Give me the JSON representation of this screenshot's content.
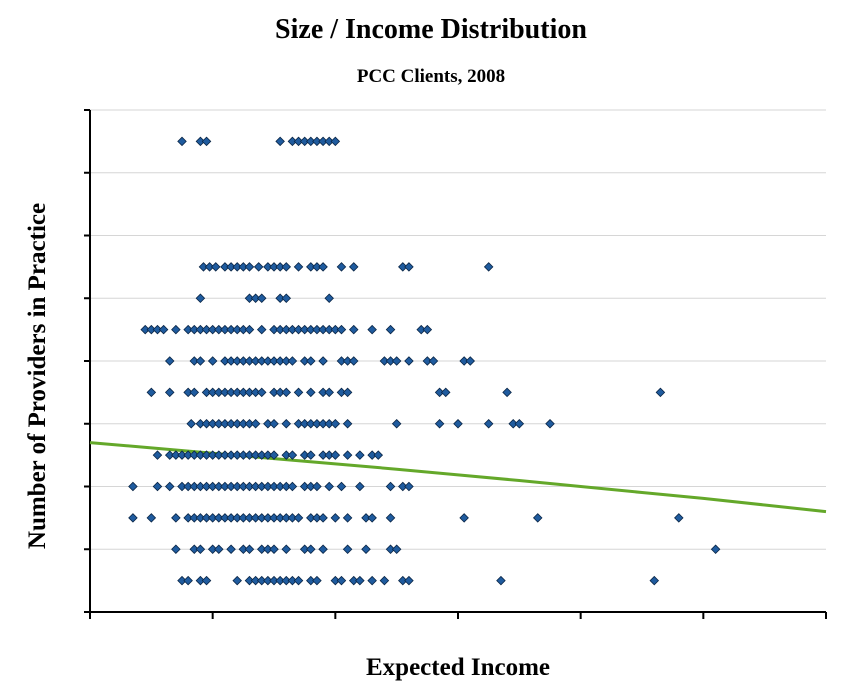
{
  "chart_data": {
    "type": "scatter",
    "title": "Size / Income Distribution",
    "subtitle": "PCC Clients, 2008",
    "xlabel": "Expected Income",
    "ylabel": "Number of Providers in Practice",
    "x_range": [
      0,
      12
    ],
    "y_range": [
      0,
      16
    ],
    "x_tick_count": 6,
    "y_tick_count": 8,
    "grid": "horizontal",
    "legend": "none",
    "colors": {
      "marker_fill": "#1f5b9e",
      "marker_stroke": "#0a2545",
      "trend_line": "#64a82a",
      "grid": "#d6d6d6",
      "axis": "#000000"
    },
    "series": [
      {
        "type": "scatter",
        "points": [
          [
            1.5,
            15
          ],
          [
            1.8,
            15
          ],
          [
            1.9,
            15
          ],
          [
            3.1,
            15
          ],
          [
            3.3,
            15
          ],
          [
            3.4,
            15
          ],
          [
            3.5,
            15
          ],
          [
            3.6,
            15
          ],
          [
            3.7,
            15
          ],
          [
            3.8,
            15
          ],
          [
            3.9,
            15
          ],
          [
            4.0,
            15
          ],
          [
            1.85,
            11
          ],
          [
            1.95,
            11
          ],
          [
            2.05,
            11
          ],
          [
            2.2,
            11
          ],
          [
            2.3,
            11
          ],
          [
            2.4,
            11
          ],
          [
            2.5,
            11
          ],
          [
            2.6,
            11
          ],
          [
            2.75,
            11
          ],
          [
            2.9,
            11
          ],
          [
            3.0,
            11
          ],
          [
            3.1,
            11
          ],
          [
            3.2,
            11
          ],
          [
            3.4,
            11
          ],
          [
            3.6,
            11
          ],
          [
            3.7,
            11
          ],
          [
            3.8,
            11
          ],
          [
            4.1,
            11
          ],
          [
            4.3,
            11
          ],
          [
            5.1,
            11
          ],
          [
            5.2,
            11
          ],
          [
            6.5,
            11
          ],
          [
            1.8,
            10
          ],
          [
            2.6,
            10
          ],
          [
            2.7,
            10
          ],
          [
            2.8,
            10
          ],
          [
            3.1,
            10
          ],
          [
            3.2,
            10
          ],
          [
            3.9,
            10
          ],
          [
            0.9,
            9
          ],
          [
            1.0,
            9
          ],
          [
            1.1,
            9
          ],
          [
            1.2,
            9
          ],
          [
            1.4,
            9
          ],
          [
            1.6,
            9
          ],
          [
            1.7,
            9
          ],
          [
            1.8,
            9
          ],
          [
            1.9,
            9
          ],
          [
            2.0,
            9
          ],
          [
            2.1,
            9
          ],
          [
            2.2,
            9
          ],
          [
            2.3,
            9
          ],
          [
            2.4,
            9
          ],
          [
            2.5,
            9
          ],
          [
            2.6,
            9
          ],
          [
            2.8,
            9
          ],
          [
            3.0,
            9
          ],
          [
            3.1,
            9
          ],
          [
            3.2,
            9
          ],
          [
            3.3,
            9
          ],
          [
            3.4,
            9
          ],
          [
            3.5,
            9
          ],
          [
            3.6,
            9
          ],
          [
            3.7,
            9
          ],
          [
            3.8,
            9
          ],
          [
            3.9,
            9
          ],
          [
            4.0,
            9
          ],
          [
            4.1,
            9
          ],
          [
            4.3,
            9
          ],
          [
            4.6,
            9
          ],
          [
            4.9,
            9
          ],
          [
            5.4,
            9
          ],
          [
            5.5,
            9
          ],
          [
            1.3,
            8
          ],
          [
            1.7,
            8
          ],
          [
            1.8,
            8
          ],
          [
            2.0,
            8
          ],
          [
            2.2,
            8
          ],
          [
            2.3,
            8
          ],
          [
            2.4,
            8
          ],
          [
            2.5,
            8
          ],
          [
            2.6,
            8
          ],
          [
            2.7,
            8
          ],
          [
            2.8,
            8
          ],
          [
            2.9,
            8
          ],
          [
            3.0,
            8
          ],
          [
            3.1,
            8
          ],
          [
            3.2,
            8
          ],
          [
            3.3,
            8
          ],
          [
            3.5,
            8
          ],
          [
            3.6,
            8
          ],
          [
            3.8,
            8
          ],
          [
            4.1,
            8
          ],
          [
            4.2,
            8
          ],
          [
            4.3,
            8
          ],
          [
            4.8,
            8
          ],
          [
            4.9,
            8
          ],
          [
            5.0,
            8
          ],
          [
            5.2,
            8
          ],
          [
            5.5,
            8
          ],
          [
            5.6,
            8
          ],
          [
            6.1,
            8
          ],
          [
            6.2,
            8
          ],
          [
            1.0,
            7
          ],
          [
            1.3,
            7
          ],
          [
            1.6,
            7
          ],
          [
            1.7,
            7
          ],
          [
            1.9,
            7
          ],
          [
            2.0,
            7
          ],
          [
            2.1,
            7
          ],
          [
            2.2,
            7
          ],
          [
            2.3,
            7
          ],
          [
            2.4,
            7
          ],
          [
            2.5,
            7
          ],
          [
            2.6,
            7
          ],
          [
            2.7,
            7
          ],
          [
            2.8,
            7
          ],
          [
            3.0,
            7
          ],
          [
            3.1,
            7
          ],
          [
            3.2,
            7
          ],
          [
            3.4,
            7
          ],
          [
            3.6,
            7
          ],
          [
            3.8,
            7
          ],
          [
            3.9,
            7
          ],
          [
            4.1,
            7
          ],
          [
            4.2,
            7
          ],
          [
            5.7,
            7
          ],
          [
            5.8,
            7
          ],
          [
            6.8,
            7
          ],
          [
            9.3,
            7
          ],
          [
            1.65,
            6
          ],
          [
            1.8,
            6
          ],
          [
            1.9,
            6
          ],
          [
            2.0,
            6
          ],
          [
            2.1,
            6
          ],
          [
            2.2,
            6
          ],
          [
            2.3,
            6
          ],
          [
            2.4,
            6
          ],
          [
            2.5,
            6
          ],
          [
            2.6,
            6
          ],
          [
            2.7,
            6
          ],
          [
            2.9,
            6
          ],
          [
            3.0,
            6
          ],
          [
            3.2,
            6
          ],
          [
            3.4,
            6
          ],
          [
            3.5,
            6
          ],
          [
            3.6,
            6
          ],
          [
            3.7,
            6
          ],
          [
            3.8,
            6
          ],
          [
            3.9,
            6
          ],
          [
            4.0,
            6
          ],
          [
            4.2,
            6
          ],
          [
            5.0,
            6
          ],
          [
            5.7,
            6
          ],
          [
            6.0,
            6
          ],
          [
            6.5,
            6
          ],
          [
            6.9,
            6
          ],
          [
            7.0,
            6
          ],
          [
            7.5,
            6
          ],
          [
            1.1,
            5
          ],
          [
            1.3,
            5
          ],
          [
            1.4,
            5
          ],
          [
            1.5,
            5
          ],
          [
            1.6,
            5
          ],
          [
            1.7,
            5
          ],
          [
            1.8,
            5
          ],
          [
            1.9,
            5
          ],
          [
            2.0,
            5
          ],
          [
            2.1,
            5
          ],
          [
            2.2,
            5
          ],
          [
            2.3,
            5
          ],
          [
            2.4,
            5
          ],
          [
            2.5,
            5
          ],
          [
            2.6,
            5
          ],
          [
            2.7,
            5
          ],
          [
            2.8,
            5
          ],
          [
            2.9,
            5
          ],
          [
            3.0,
            5
          ],
          [
            3.2,
            5
          ],
          [
            3.3,
            5
          ],
          [
            3.5,
            5
          ],
          [
            3.6,
            5
          ],
          [
            3.8,
            5
          ],
          [
            3.9,
            5
          ],
          [
            4.0,
            5
          ],
          [
            4.2,
            5
          ],
          [
            4.4,
            5
          ],
          [
            4.6,
            5
          ],
          [
            4.7,
            5
          ],
          [
            0.7,
            4
          ],
          [
            1.1,
            4
          ],
          [
            1.3,
            4
          ],
          [
            1.5,
            4
          ],
          [
            1.6,
            4
          ],
          [
            1.7,
            4
          ],
          [
            1.8,
            4
          ],
          [
            1.9,
            4
          ],
          [
            2.0,
            4
          ],
          [
            2.1,
            4
          ],
          [
            2.2,
            4
          ],
          [
            2.3,
            4
          ],
          [
            2.4,
            4
          ],
          [
            2.5,
            4
          ],
          [
            2.6,
            4
          ],
          [
            2.7,
            4
          ],
          [
            2.8,
            4
          ],
          [
            2.9,
            4
          ],
          [
            3.0,
            4
          ],
          [
            3.1,
            4
          ],
          [
            3.2,
            4
          ],
          [
            3.3,
            4
          ],
          [
            3.5,
            4
          ],
          [
            3.6,
            4
          ],
          [
            3.7,
            4
          ],
          [
            3.9,
            4
          ],
          [
            4.1,
            4
          ],
          [
            4.4,
            4
          ],
          [
            4.9,
            4
          ],
          [
            5.1,
            4
          ],
          [
            5.2,
            4
          ],
          [
            0.7,
            3
          ],
          [
            1.0,
            3
          ],
          [
            1.4,
            3
          ],
          [
            1.6,
            3
          ],
          [
            1.7,
            3
          ],
          [
            1.8,
            3
          ],
          [
            1.9,
            3
          ],
          [
            2.0,
            3
          ],
          [
            2.1,
            3
          ],
          [
            2.2,
            3
          ],
          [
            2.3,
            3
          ],
          [
            2.4,
            3
          ],
          [
            2.5,
            3
          ],
          [
            2.6,
            3
          ],
          [
            2.7,
            3
          ],
          [
            2.8,
            3
          ],
          [
            2.9,
            3
          ],
          [
            3.0,
            3
          ],
          [
            3.1,
            3
          ],
          [
            3.2,
            3
          ],
          [
            3.3,
            3
          ],
          [
            3.4,
            3
          ],
          [
            3.6,
            3
          ],
          [
            3.7,
            3
          ],
          [
            3.8,
            3
          ],
          [
            4.0,
            3
          ],
          [
            4.2,
            3
          ],
          [
            4.5,
            3
          ],
          [
            4.6,
            3
          ],
          [
            4.9,
            3
          ],
          [
            6.1,
            3
          ],
          [
            7.3,
            3
          ],
          [
            9.6,
            3
          ],
          [
            1.4,
            2
          ],
          [
            1.7,
            2
          ],
          [
            1.8,
            2
          ],
          [
            2.0,
            2
          ],
          [
            2.1,
            2
          ],
          [
            2.3,
            2
          ],
          [
            2.5,
            2
          ],
          [
            2.6,
            2
          ],
          [
            2.8,
            2
          ],
          [
            2.9,
            2
          ],
          [
            3.0,
            2
          ],
          [
            3.2,
            2
          ],
          [
            3.5,
            2
          ],
          [
            3.6,
            2
          ],
          [
            3.8,
            2
          ],
          [
            4.2,
            2
          ],
          [
            4.5,
            2
          ],
          [
            4.9,
            2
          ],
          [
            5.0,
            2
          ],
          [
            10.2,
            2
          ],
          [
            1.5,
            1
          ],
          [
            1.6,
            1
          ],
          [
            1.8,
            1
          ],
          [
            1.9,
            1
          ],
          [
            2.4,
            1
          ],
          [
            2.6,
            1
          ],
          [
            2.7,
            1
          ],
          [
            2.8,
            1
          ],
          [
            2.9,
            1
          ],
          [
            3.0,
            1
          ],
          [
            3.1,
            1
          ],
          [
            3.2,
            1
          ],
          [
            3.3,
            1
          ],
          [
            3.4,
            1
          ],
          [
            3.6,
            1
          ],
          [
            3.7,
            1
          ],
          [
            4.0,
            1
          ],
          [
            4.1,
            1
          ],
          [
            4.3,
            1
          ],
          [
            4.4,
            1
          ],
          [
            4.6,
            1
          ],
          [
            4.8,
            1
          ],
          [
            5.1,
            1
          ],
          [
            5.2,
            1
          ],
          [
            6.7,
            1
          ],
          [
            9.2,
            1
          ]
        ]
      },
      {
        "type": "trend",
        "line": [
          [
            0,
            5.4
          ],
          [
            1,
            5.23
          ],
          [
            2,
            5.06
          ],
          [
            3,
            4.89
          ],
          [
            4,
            4.72
          ],
          [
            5,
            4.55
          ],
          [
            6,
            4.37
          ],
          [
            7,
            4.19
          ],
          [
            8,
            4.0
          ],
          [
            9,
            3.81
          ],
          [
            10,
            3.62
          ],
          [
            11,
            3.41
          ],
          [
            12,
            3.2
          ]
        ]
      }
    ]
  }
}
